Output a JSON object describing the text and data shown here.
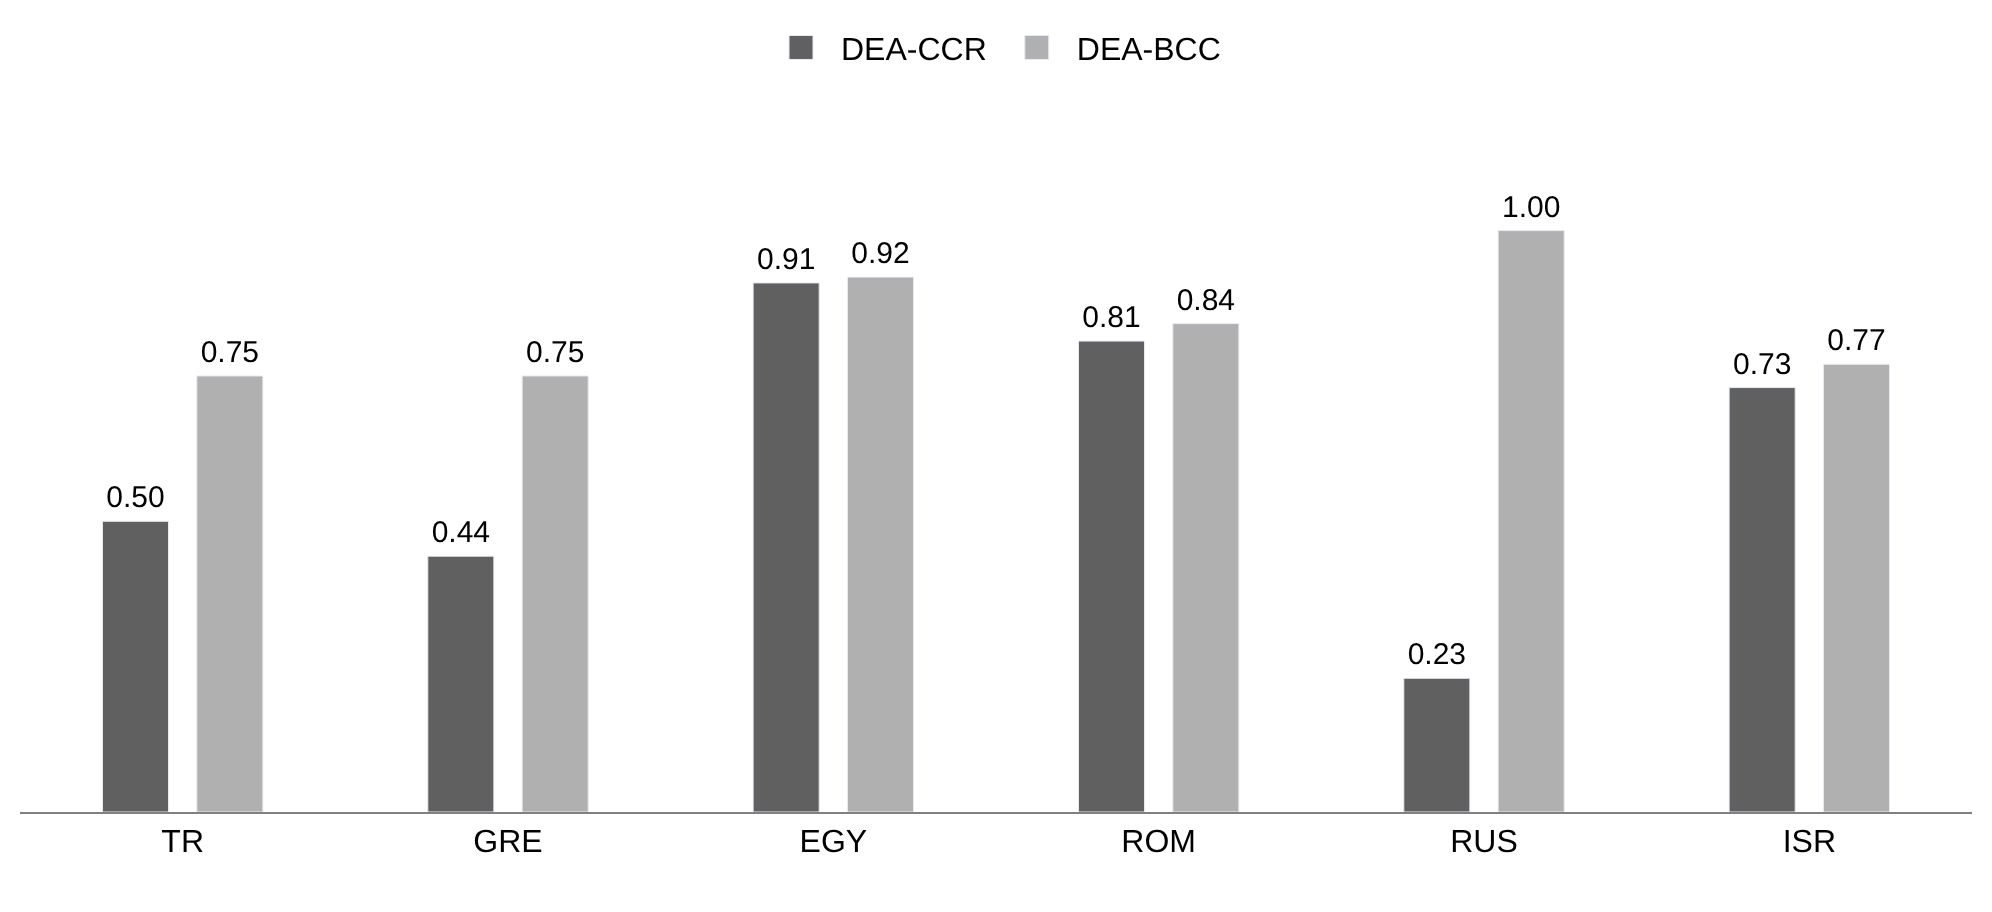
{
  "chart_data": {
    "type": "bar",
    "categories": [
      "TR",
      "GRE",
      "EGY",
      "ROM",
      "RUS",
      "ISR"
    ],
    "series": [
      {
        "name": "DEA-CCR",
        "color": "#606060",
        "values": [
          0.5,
          0.44,
          0.91,
          0.81,
          0.23,
          0.73
        ],
        "value_labels": [
          "0.50",
          "0.44",
          "0.91",
          "0.81",
          "0.23",
          "0.73"
        ]
      },
      {
        "name": "DEA-BCC",
        "color": "#b0b0b0",
        "values": [
          0.75,
          0.75,
          0.92,
          0.84,
          1.0,
          0.77
        ],
        "value_labels": [
          "0.75",
          "0.75",
          "0.92",
          "0.84",
          "1.00",
          "0.77"
        ]
      }
    ],
    "legend": "top"
  }
}
